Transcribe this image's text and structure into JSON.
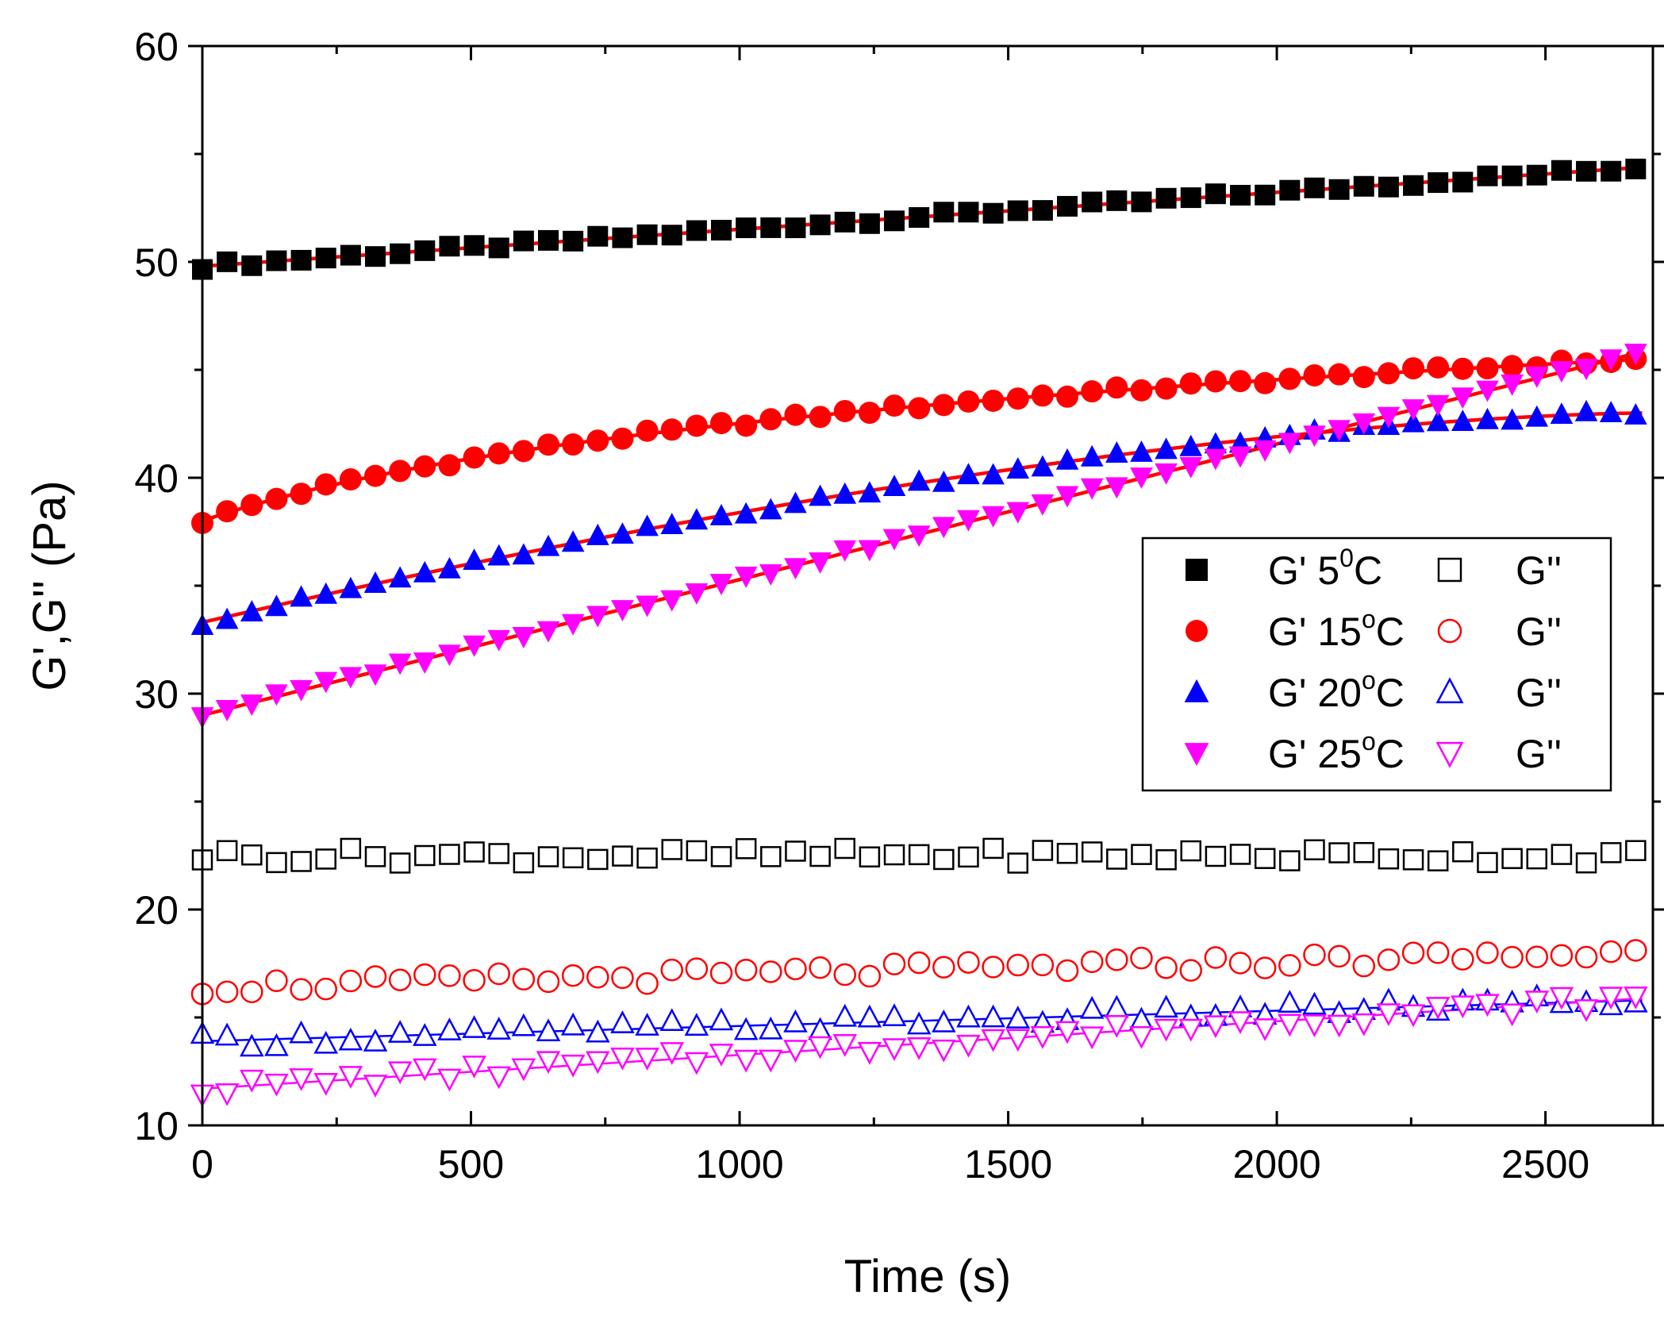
{
  "chart_data": {
    "type": "scatter",
    "title": "",
    "xlabel": "Time (s)",
    "ylabel": "G',G'' (Pa)",
    "xlim": [
      0,
      2700
    ],
    "ylim": [
      10,
      60
    ],
    "x_ticks": [
      0,
      500,
      1000,
      1500,
      2000,
      2500
    ],
    "y_ticks": [
      10,
      20,
      30,
      40,
      50,
      60
    ],
    "x_tick_labels": [
      "0",
      "500",
      "1000",
      "1500",
      "2000",
      "2500"
    ],
    "y_tick_labels": [
      "10",
      "20",
      "30",
      "40",
      "50",
      "60"
    ],
    "legend_position": "center-right",
    "fit_color": "#ff0000",
    "series": [
      {
        "name": "G' 5",
        "sup": "0",
        "unit": "C",
        "marker": "square",
        "filled": true,
        "color": "#000000",
        "start": 49.8,
        "end": 54.4,
        "shape": "linear",
        "fit": true
      },
      {
        "name": "G' 15",
        "sup": "o",
        "unit": "C",
        "marker": "circle",
        "filled": true,
        "color": "#ff0000",
        "start": 38.0,
        "end": 45.5,
        "shape": "log",
        "fit": true
      },
      {
        "name": "G' 20",
        "sup": "o",
        "unit": "C",
        "marker": "triangle-up",
        "filled": true,
        "color": "#0000ff",
        "start": 33.3,
        "end": 43.0,
        "shape": "sqrt",
        "fit": true
      },
      {
        "name": "G' 25",
        "sup": "o",
        "unit": "C",
        "marker": "triangle-down",
        "filled": true,
        "color": "#ff00ff",
        "start": 29.0,
        "end": 45.9,
        "shape": "linear",
        "fit": true
      },
      {
        "name": "G''",
        "sup": "",
        "unit": "",
        "marker": "square",
        "filled": false,
        "color": "#000000",
        "start": 22.5,
        "end": 22.6,
        "shape": "flat",
        "fit": false
      },
      {
        "name": "G''",
        "sup": "",
        "unit": "",
        "marker": "circle",
        "filled": false,
        "color": "#ff0000",
        "start": 16.4,
        "end": 18.0,
        "shape": "linear",
        "fit": false
      },
      {
        "name": "G''",
        "sup": "",
        "unit": "",
        "marker": "triangle-up",
        "filled": false,
        "color": "#0000ff",
        "start": 13.9,
        "end": 15.8,
        "shape": "linear",
        "fit": true
      },
      {
        "name": "G''",
        "sup": "",
        "unit": "",
        "marker": "triangle-down",
        "filled": false,
        "color": "#ff00ff",
        "start": 11.7,
        "end": 15.9,
        "shape": "linear",
        "fit": true
      }
    ]
  }
}
